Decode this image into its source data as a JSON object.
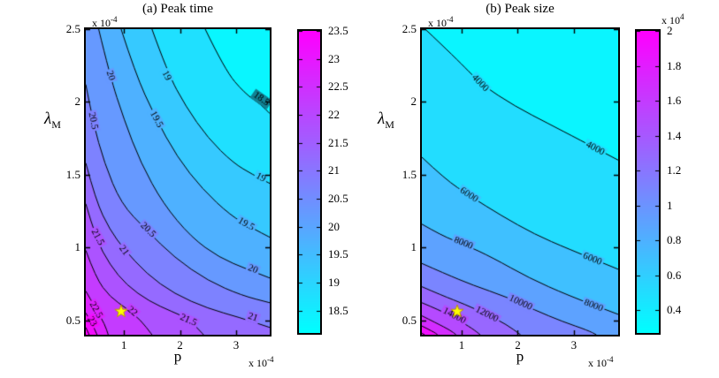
{
  "chart_data": [
    {
      "type": "contour",
      "title": "(a) Peak time",
      "xlabel": "p",
      "ylabel": "λ",
      "ylabel_sub": "M",
      "x_scale": {
        "prefix": "x 10",
        "exp": "-4"
      },
      "y_scale": {
        "prefix": "x 10",
        "exp": "-4"
      },
      "xlim": [
        0.32,
        3.6
      ],
      "ylim": [
        0.4,
        2.5
      ],
      "x_ticks": [
        "1",
        "2",
        "3"
      ],
      "y_ticks": [
        "0.5",
        "1",
        "1.5",
        "2",
        "2.5"
      ],
      "colormap": "cool",
      "line_color": "#000000",
      "star": {
        "x": 0.95,
        "y": 0.56,
        "color": "#ffff00",
        "edge": "#b8960b"
      },
      "band_step": 0.5,
      "colorbar": {
        "cmin": 18.1,
        "cmax": 23.5,
        "tick_values": [
          23.5,
          23,
          22.5,
          22,
          21.5,
          21,
          20.5,
          20,
          19.5,
          19,
          18.5
        ],
        "tick_labels": [
          "23.5",
          "23",
          "22.5",
          "22",
          "21.5",
          "21",
          "20.5",
          "20",
          "19.5",
          "19",
          "18.5"
        ]
      },
      "contours": [
        {
          "level": 18.5,
          "label": "18.5",
          "points": [
            [
              2.45,
              2.5
            ],
            [
              2.8,
              2.22
            ],
            [
              3.15,
              2.06
            ],
            [
              3.45,
              1.98
            ],
            [
              3.6,
              1.92
            ]
          ],
          "labels": [
            [
              3.45,
              2.02
            ]
          ]
        },
        {
          "level": 19,
          "label": "19",
          "points": [
            [
              1.5,
              2.5
            ],
            [
              1.78,
              2.2
            ],
            [
              2.1,
              1.97
            ],
            [
              2.5,
              1.75
            ],
            [
              2.95,
              1.58
            ],
            [
              3.3,
              1.5
            ],
            [
              3.6,
              1.44
            ]
          ],
          "labels": [
            [
              1.76,
              2.18
            ],
            [
              3.44,
              1.48
            ]
          ]
        },
        {
          "level": 19.5,
          "label": "19.5",
          "points": [
            [
              0.95,
              2.5
            ],
            [
              1.2,
              2.2
            ],
            [
              1.55,
              1.9
            ],
            [
              1.95,
              1.62
            ],
            [
              2.4,
              1.4
            ],
            [
              2.9,
              1.22
            ],
            [
              3.3,
              1.13
            ],
            [
              3.6,
              1.07
            ]
          ],
          "labels": [
            [
              1.58,
              1.88
            ],
            [
              3.18,
              1.16
            ]
          ]
        },
        {
          "level": 20,
          "label": "20",
          "points": [
            [
              0.55,
              2.5
            ],
            [
              0.75,
              2.18
            ],
            [
              1.0,
              1.88
            ],
            [
              1.3,
              1.58
            ],
            [
              1.7,
              1.3
            ],
            [
              2.2,
              1.07
            ],
            [
              2.7,
              0.93
            ],
            [
              3.2,
              0.85
            ],
            [
              3.6,
              0.79
            ]
          ],
          "labels": [
            [
              0.76,
              2.18
            ],
            [
              3.3,
              0.85
            ]
          ]
        },
        {
          "level": 20.5,
          "label": "20.5",
          "points": [
            [
              0.32,
              2.12
            ],
            [
              0.45,
              1.86
            ],
            [
              0.65,
              1.58
            ],
            [
              0.95,
              1.3
            ],
            [
              1.4,
              1.12
            ],
            [
              1.9,
              0.93
            ],
            [
              2.5,
              0.77
            ],
            [
              3.1,
              0.67
            ],
            [
              3.6,
              0.62
            ]
          ],
          "labels": [
            [
              0.45,
              1.87
            ],
            [
              1.43,
              1.12
            ]
          ]
        },
        {
          "level": 21,
          "label": "21",
          "points": [
            [
              0.32,
              1.58
            ],
            [
              0.5,
              1.32
            ],
            [
              0.75,
              1.12
            ],
            [
              1.0,
              0.99
            ],
            [
              1.4,
              0.82
            ],
            [
              1.9,
              0.68
            ],
            [
              2.5,
              0.58
            ],
            [
              3.05,
              0.52
            ],
            [
              3.6,
              0.45
            ]
          ],
          "labels": [
            [
              1.0,
              0.98
            ],
            [
              3.3,
              0.52
            ]
          ]
        },
        {
          "level": 21.5,
          "label": "21.5",
          "points": [
            [
              0.32,
              1.3
            ],
            [
              0.5,
              1.06
            ],
            [
              0.75,
              0.88
            ],
            [
              1.05,
              0.74
            ],
            [
              1.45,
              0.63
            ],
            [
              1.85,
              0.56
            ],
            [
              2.15,
              0.51
            ],
            [
              2.42,
              0.4
            ]
          ],
          "labels": [
            [
              0.53,
              1.07
            ],
            [
              2.15,
              0.5
            ]
          ]
        },
        {
          "level": 22,
          "label": "22",
          "points": [
            [
              0.32,
              0.98
            ],
            [
              0.5,
              0.79
            ],
            [
              0.75,
              0.66
            ],
            [
              1.05,
              0.58
            ],
            [
              1.3,
              0.5
            ],
            [
              1.5,
              0.4
            ]
          ],
          "labels": [
            [
              1.15,
              0.56
            ]
          ]
        },
        {
          "level": 22.5,
          "label": "22.5",
          "points": [
            [
              0.32,
              0.7
            ],
            [
              0.5,
              0.58
            ],
            [
              0.66,
              0.47
            ],
            [
              0.72,
              0.4
            ]
          ],
          "labels": [
            [
              0.5,
              0.57
            ]
          ]
        },
        {
          "level": 23,
          "label": "23",
          "points": [
            [
              0.32,
              0.55
            ],
            [
              0.44,
              0.47
            ],
            [
              0.52,
              0.4
            ]
          ],
          "labels": [
            [
              0.43,
              0.49
            ]
          ]
        },
        {
          "level": 23.5,
          "label": "23.5",
          "points": [
            [
              0.32,
              0.45
            ],
            [
              0.38,
              0.4
            ]
          ],
          "labels": []
        }
      ]
    },
    {
      "type": "contour",
      "title": "(b)  Peak size",
      "xlabel": "p",
      "ylabel": "λ",
      "ylabel_sub": "M",
      "x_scale": {
        "prefix": "x 10",
        "exp": "-4"
      },
      "y_scale": {
        "prefix": "x 10",
        "exp": "-4"
      },
      "xlim": [
        0.29,
        3.79
      ],
      "ylim": [
        0.4,
        2.5
      ],
      "x_ticks": [
        "1",
        "2",
        "3"
      ],
      "y_ticks": [
        "0.5",
        "1",
        "1.5",
        "2",
        "2.5"
      ],
      "colormap": "cool",
      "line_color": "#000000",
      "star": {
        "x": 0.92,
        "y": 0.56,
        "color": "#ffff00",
        "edge": "#b8960b"
      },
      "band_step": 2000,
      "colorbar": {
        "cmin": 2700,
        "cmax": 20000,
        "tick_values": [
          20000,
          18000,
          16000,
          14000,
          12000,
          10000,
          8000,
          6000,
          4000
        ],
        "tick_labels": [
          "2",
          "1.8",
          "1.6",
          "1.4",
          "1.2",
          "1",
          "0.8",
          "0.6",
          "0.4"
        ],
        "scale": {
          "prefix": "x 10",
          "exp": "4"
        }
      },
      "contours": [
        {
          "level": 4000,
          "label": "4000",
          "points": [
            [
              0.35,
              2.5
            ],
            [
              0.9,
              2.3
            ],
            [
              1.35,
              2.12
            ],
            [
              1.95,
              1.97
            ],
            [
              2.55,
              1.85
            ],
            [
              3.1,
              1.74
            ],
            [
              3.79,
              1.6
            ]
          ],
          "labels": [
            [
              1.33,
              2.13
            ],
            [
              3.38,
              1.68
            ]
          ]
        },
        {
          "level": 6000,
          "label": "6000",
          "points": [
            [
              0.29,
              1.62
            ],
            [
              0.7,
              1.47
            ],
            [
              1.16,
              1.35
            ],
            [
              1.7,
              1.22
            ],
            [
              2.3,
              1.09
            ],
            [
              2.9,
              0.99
            ],
            [
              3.79,
              0.85
            ]
          ],
          "labels": [
            [
              1.13,
              1.36
            ],
            [
              3.33,
              0.92
            ]
          ]
        },
        {
          "level": 8000,
          "label": "8000",
          "points": [
            [
              0.29,
              1.16
            ],
            [
              0.65,
              1.08
            ],
            [
              1.05,
              1.02
            ],
            [
              1.55,
              0.93
            ],
            [
              2.2,
              0.79
            ],
            [
              2.9,
              0.67
            ],
            [
              3.79,
              0.54
            ]
          ],
          "labels": [
            [
              1.03,
              1.03
            ],
            [
              3.35,
              0.6
            ]
          ]
        },
        {
          "level": 10000,
          "label": "10000",
          "points": [
            [
              0.29,
              0.89
            ],
            [
              0.7,
              0.82
            ],
            [
              1.2,
              0.74
            ],
            [
              1.8,
              0.66
            ],
            [
              2.3,
              0.57
            ],
            [
              2.8,
              0.49
            ],
            [
              3.25,
              0.43
            ],
            [
              3.4,
              0.4
            ]
          ],
          "labels": [
            [
              2.05,
              0.62
            ]
          ]
        },
        {
          "level": 12000,
          "label": "12000",
          "points": [
            [
              0.29,
              0.73
            ],
            [
              0.65,
              0.67
            ],
            [
              1.05,
              0.61
            ],
            [
              1.45,
              0.54
            ],
            [
              1.8,
              0.47
            ],
            [
              2.05,
              0.4
            ]
          ],
          "labels": [
            [
              1.45,
              0.54
            ]
          ]
        },
        {
          "level": 14000,
          "label": "14000",
          "points": [
            [
              0.29,
              0.62
            ],
            [
              0.6,
              0.57
            ],
            [
              0.9,
              0.51
            ],
            [
              1.2,
              0.44
            ],
            [
              1.33,
              0.4
            ]
          ],
          "labels": [
            [
              0.87,
              0.53
            ]
          ]
        },
        {
          "level": 16000,
          "label": "16000",
          "points": [
            [
              0.29,
              0.53
            ],
            [
              0.55,
              0.48
            ],
            [
              0.8,
              0.43
            ],
            [
              0.9,
              0.4
            ]
          ],
          "labels": []
        },
        {
          "level": 18000,
          "label": "18000",
          "points": [
            [
              0.29,
              0.46
            ],
            [
              0.5,
              0.42
            ],
            [
              0.57,
              0.4
            ]
          ],
          "labels": []
        },
        {
          "level": 20000,
          "label": "20000",
          "points": [
            [
              0.29,
              0.41
            ],
            [
              0.34,
              0.4
            ]
          ],
          "labels": []
        }
      ]
    }
  ]
}
